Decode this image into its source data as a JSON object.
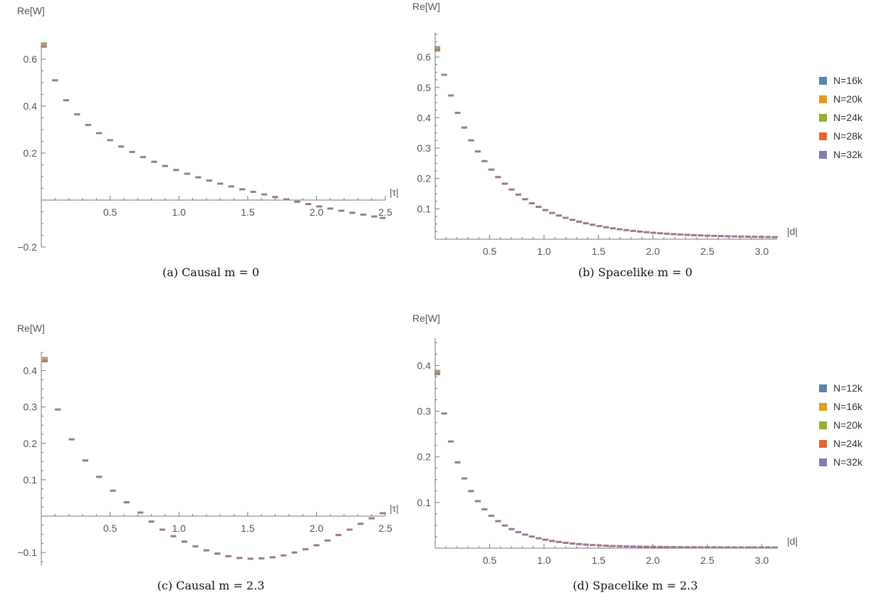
{
  "chart_data": [
    {
      "type": "scatter",
      "caption": "(a) Causal m = 0",
      "xlabel": "|τ|",
      "ylabel": "Re[W]",
      "xlim": [
        0,
        2.5
      ],
      "ylim": [
        -0.2,
        0.67
      ],
      "xticks": [
        0.5,
        1.0,
        1.5,
        2.0,
        2.5
      ],
      "xtick_labels": [
        "0.5",
        "1.0",
        "1.5",
        "2.0",
        "2.5"
      ],
      "yticks": [
        -0.2,
        0.2,
        0.4,
        0.6
      ],
      "ytick_labels": [
        "−0.2",
        "0.2",
        "0.4",
        "0.6"
      ],
      "legend": [
        "N=16k",
        "N=20k",
        "N=24k",
        "N=28k",
        "N=32k"
      ],
      "curve": "causal0"
    },
    {
      "type": "scatter",
      "caption": "(b) Spacelike m = 0",
      "xlabel": "|d|",
      "ylabel": "Re[W]",
      "xlim": [
        0,
        3.14
      ],
      "ylim": [
        0,
        0.68
      ],
      "xticks": [
        0.5,
        1.0,
        1.5,
        2.0,
        2.5,
        3.0
      ],
      "xtick_labels": [
        "0.5",
        "1.0",
        "1.5",
        "2.0",
        "2.5",
        "3.0"
      ],
      "yticks": [
        0.1,
        0.2,
        0.3,
        0.4,
        0.5,
        0.6
      ],
      "ytick_labels": [
        "0.1",
        "0.2",
        "0.3",
        "0.4",
        "0.5",
        "0.6"
      ],
      "legend": [
        "N=16k",
        "N=20k",
        "N=24k",
        "N=28k",
        "N=32k"
      ],
      "curve": "space0"
    },
    {
      "type": "scatter",
      "caption": "(c) Causal m = 2.3",
      "xlabel": "|τ|",
      "ylabel": "Re[W]",
      "xlim": [
        0,
        2.5
      ],
      "ylim": [
        -0.135,
        0.45
      ],
      "xticks": [
        0.5,
        1.0,
        1.5,
        2.0,
        2.5
      ],
      "xtick_labels": [
        "0.5",
        "1.0",
        "1.5",
        "2.0",
        "2.5"
      ],
      "yticks": [
        -0.1,
        0.1,
        0.2,
        0.3,
        0.4
      ],
      "ytick_labels": [
        "−0.1",
        "0.1",
        "0.2",
        "0.3",
        "0.4"
      ],
      "legend": [
        "N=12k",
        "N=16k",
        "N=20k",
        "N=24k",
        "N=32k"
      ],
      "curve": "causal23"
    },
    {
      "type": "scatter",
      "caption": "(d) Spacelike m = 2.3",
      "xlabel": "|d|",
      "ylabel": "Re[W]",
      "xlim": [
        0,
        3.14
      ],
      "ylim": [
        0,
        0.46
      ],
      "xticks": [
        0.5,
        1.0,
        1.5,
        2.0,
        2.5,
        3.0
      ],
      "xtick_labels": [
        "0.5",
        "1.0",
        "1.5",
        "2.0",
        "2.5",
        "3.0"
      ],
      "yticks": [
        0.1,
        0.2,
        0.3,
        0.4
      ],
      "ytick_labels": [
        "0.1",
        "0.2",
        "0.3",
        "0.4"
      ],
      "legend": [
        "N=12k",
        "N=16k",
        "N=20k",
        "N=24k",
        "N=32k"
      ],
      "curve": "space23"
    }
  ],
  "series_colors": [
    "#5e81b5",
    "#e19c24",
    "#8fb032",
    "#eb6235",
    "#8778b3"
  ]
}
